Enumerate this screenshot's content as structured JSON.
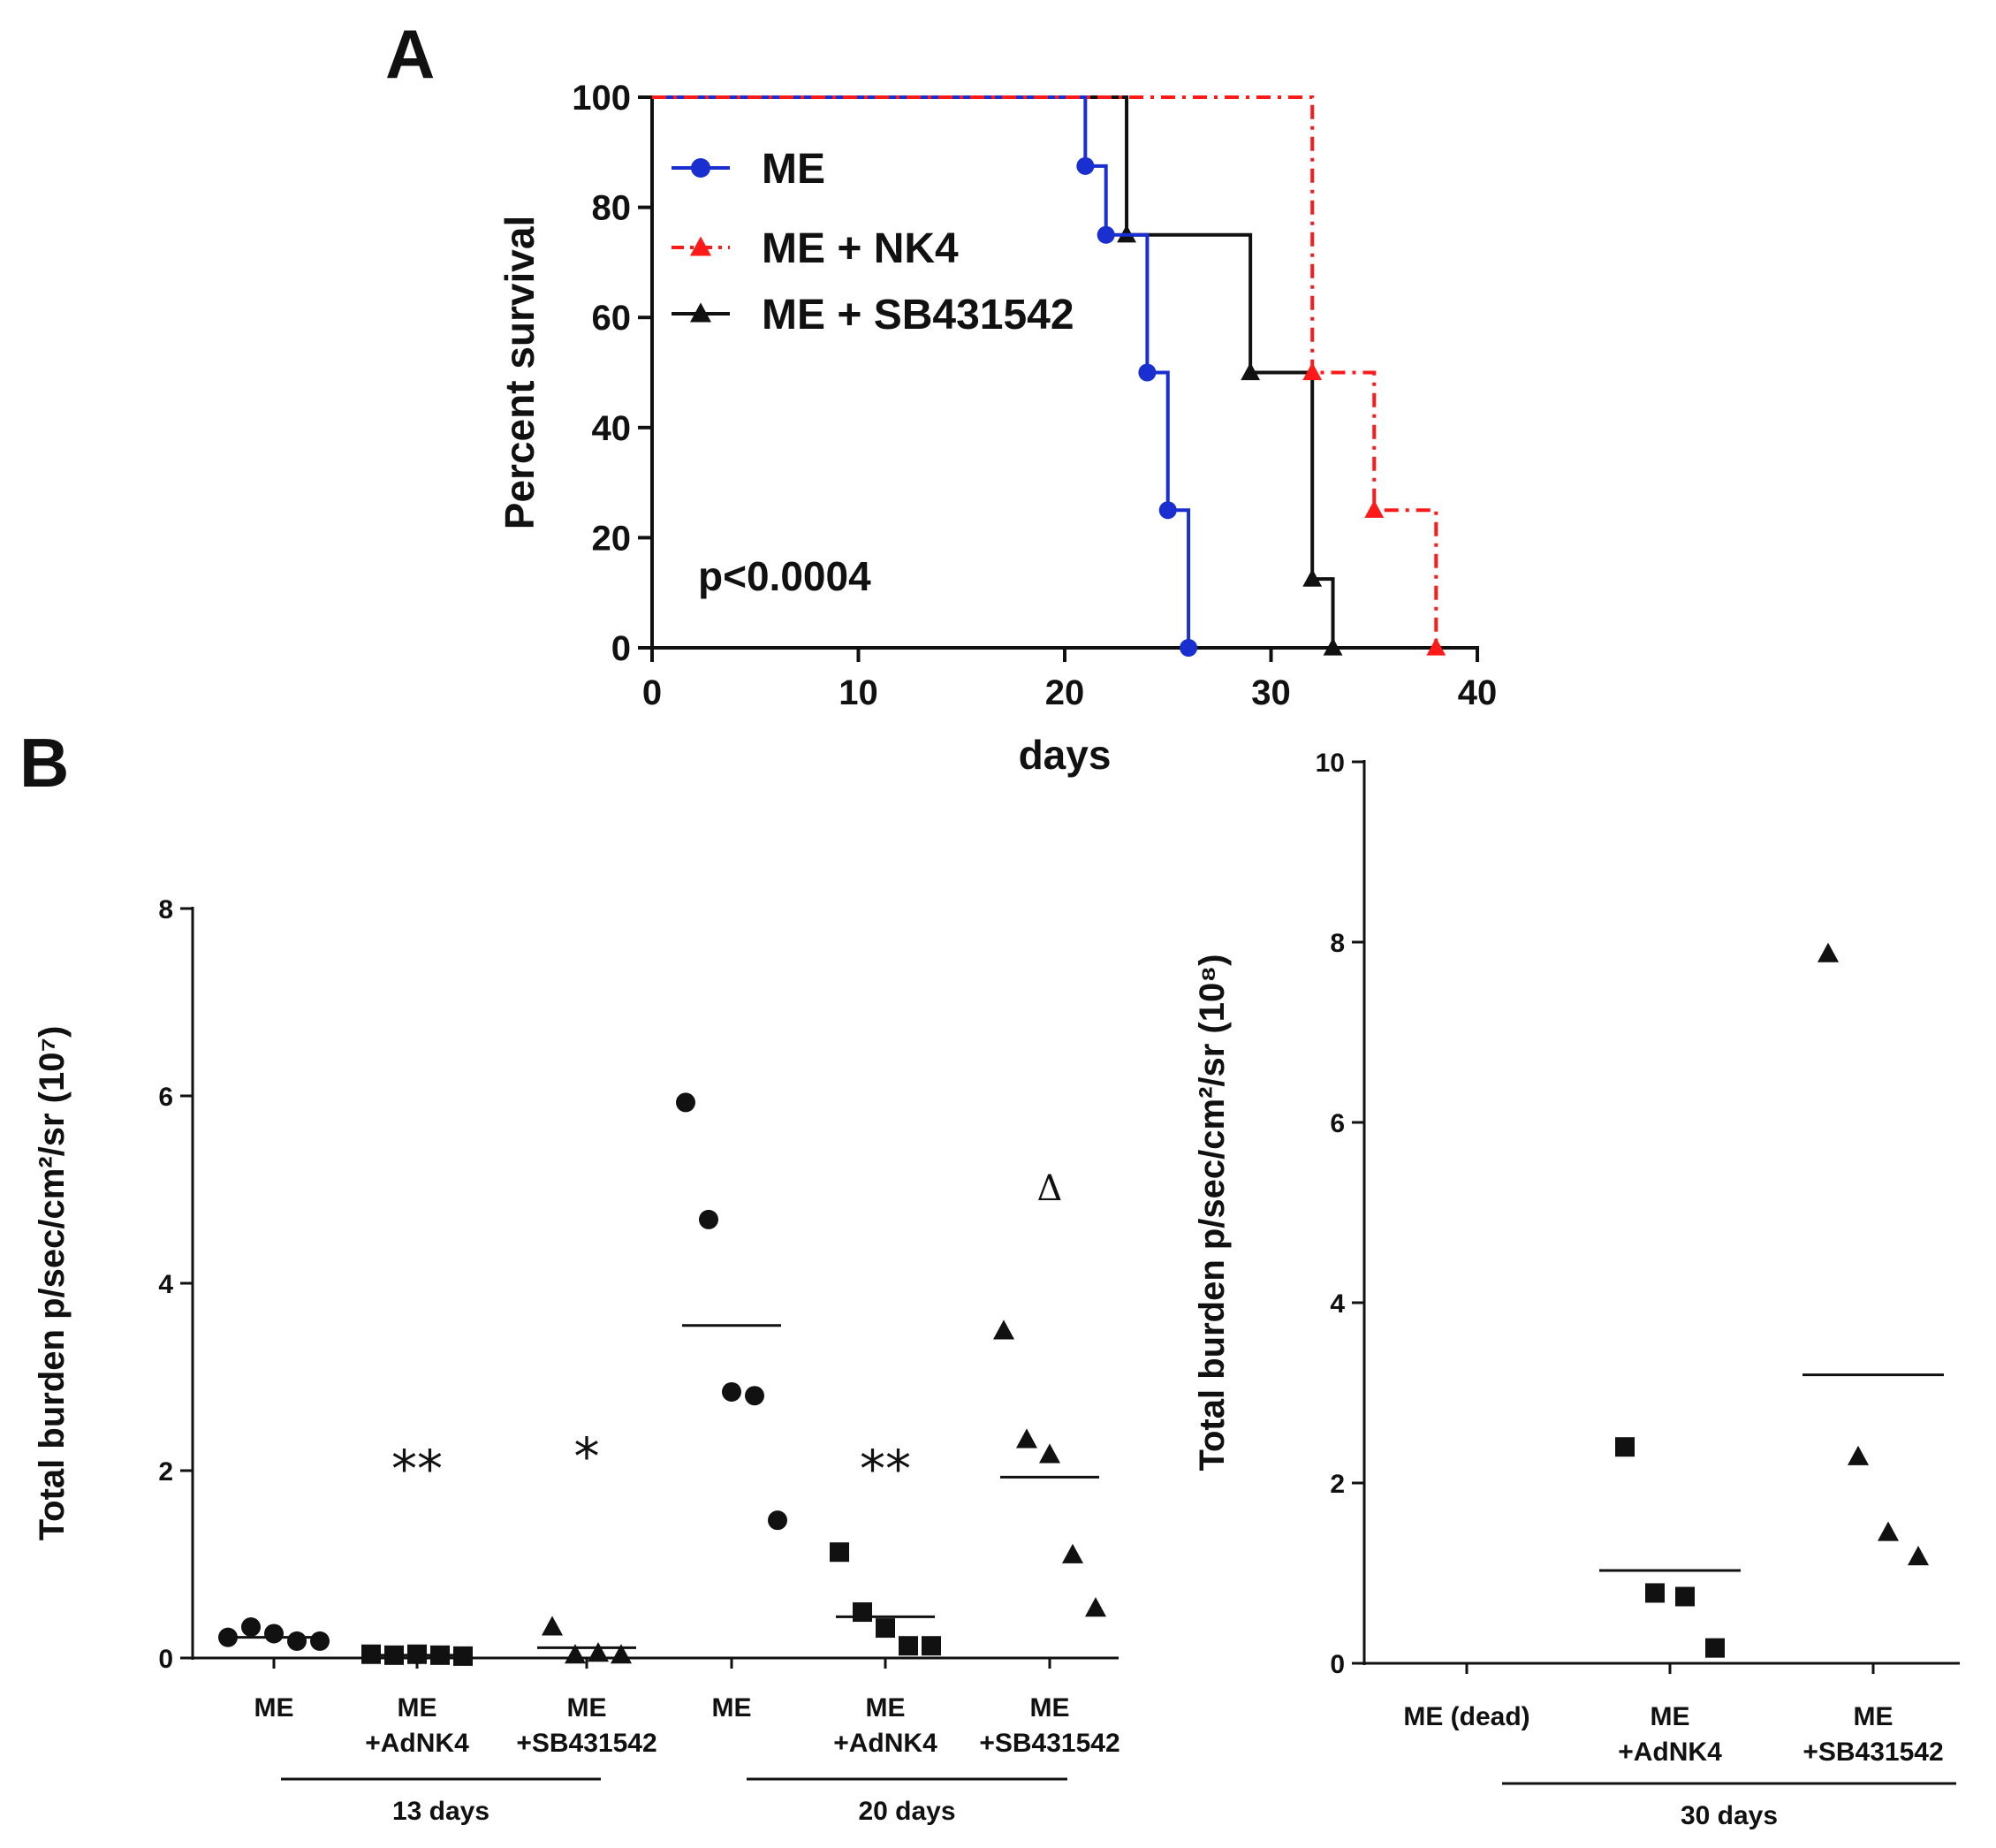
{
  "chart_data": [
    {
      "panel": "A",
      "type": "line",
      "subtype": "kaplan-meier step",
      "xlabel": "days",
      "ylabel": "Percent survival",
      "xlim": [
        0,
        40
      ],
      "ylim": [
        0,
        100
      ],
      "xticks": [
        0,
        10,
        20,
        30,
        40
      ],
      "yticks": [
        0,
        20,
        40,
        60,
        80,
        100
      ],
      "annotation": "p<0.0004",
      "legend_position": "top-left",
      "series": [
        {
          "name": "ME",
          "color": "#1a2fd0",
          "marker": "circle",
          "line": "solid",
          "steps": [
            [
              0,
              100
            ],
            [
              21,
              100
            ],
            [
              21,
              87.5
            ],
            [
              22,
              87.5
            ],
            [
              22,
              75
            ],
            [
              24,
              75
            ],
            [
              24,
              50
            ],
            [
              25,
              50
            ],
            [
              25,
              25
            ],
            [
              26,
              25
            ],
            [
              26,
              0
            ]
          ],
          "points": [
            [
              21,
              87.5
            ],
            [
              22,
              75
            ],
            [
              24,
              50
            ],
            [
              25,
              25
            ],
            [
              26,
              0
            ]
          ]
        },
        {
          "name": "ME + NK4",
          "color": "#ff1a1a",
          "marker": "triangle",
          "line": "dashdot",
          "steps": [
            [
              0,
              100
            ],
            [
              32,
              100
            ],
            [
              32,
              50
            ],
            [
              35,
              50
            ],
            [
              35,
              25
            ],
            [
              38,
              25
            ],
            [
              38,
              0
            ]
          ],
          "points": [
            [
              32,
              50
            ],
            [
              35,
              25
            ],
            [
              38,
              0
            ]
          ]
        },
        {
          "name": "ME + SB431542",
          "color": "#111111",
          "marker": "triangle",
          "line": "solid",
          "steps": [
            [
              0,
              100
            ],
            [
              23,
              100
            ],
            [
              23,
              75
            ],
            [
              29,
              75
            ],
            [
              29,
              50
            ],
            [
              32,
              50
            ],
            [
              32,
              12.5
            ],
            [
              33,
              12.5
            ],
            [
              33,
              0
            ]
          ],
          "points": [
            [
              23,
              75
            ],
            [
              29,
              50
            ],
            [
              32,
              12.5
            ],
            [
              33,
              0
            ]
          ]
        }
      ]
    },
    {
      "panel": "B-left",
      "type": "scatter",
      "ylabel": "Total burden p/sec/cm²/sr (10⁷)",
      "ylim": [
        0,
        8
      ],
      "yticks": [
        0,
        2,
        4,
        6,
        8
      ],
      "groups": [
        {
          "line1": "ME",
          "line2": "",
          "marker": "circle",
          "values": [
            0.22,
            0.33,
            0.26,
            0.18,
            0.18
          ],
          "mean": 0.22,
          "mark": ""
        },
        {
          "line1": "ME",
          "line2": "+AdNK4",
          "marker": "square",
          "values": [
            0.04,
            0.03,
            0.04,
            0.03,
            0.02
          ],
          "mean": 0.03,
          "mark": "**"
        },
        {
          "line1": "ME",
          "line2": "+SB431542",
          "marker": "triangle",
          "values": [
            0.33,
            0.03,
            0.05,
            0.03
          ],
          "mean": 0.11,
          "mark": "*"
        },
        {
          "line1": "ME",
          "line2": "",
          "marker": "circle",
          "values": [
            5.93,
            4.68,
            2.84,
            2.8,
            1.47
          ],
          "mean": 3.55,
          "mark": ""
        },
        {
          "line1": "ME",
          "line2": "+AdNK4",
          "marker": "square",
          "values": [
            1.13,
            0.49,
            0.32,
            0.13,
            0.13
          ],
          "mean": 0.44,
          "mark": "**"
        },
        {
          "line1": "ME",
          "line2": "+SB431542",
          "marker": "triangle",
          "values": [
            3.49,
            2.33,
            2.17,
            1.1,
            0.53
          ],
          "mean": 1.93,
          "mark": "Δ"
        }
      ],
      "brackets": [
        {
          "label": "13 days",
          "groups": [
            0,
            2
          ]
        },
        {
          "label": "20 days",
          "groups": [
            3,
            5
          ]
        }
      ]
    },
    {
      "panel": "B-right",
      "type": "scatter",
      "ylabel": "Total burden p/sec/cm²/sr (10⁸)",
      "ylim": [
        0,
        10
      ],
      "yticks": [
        0,
        2,
        4,
        6,
        8,
        10
      ],
      "groups": [
        {
          "line1": "ME (dead)",
          "line2": "",
          "marker": "none",
          "values": [],
          "mean": null
        },
        {
          "line1": "ME",
          "line2": "+AdNK4",
          "marker": "square",
          "values": [
            2.4,
            0.78,
            0.74,
            0.17
          ],
          "mean": 1.03
        },
        {
          "line1": "ME",
          "line2": "+SB431542",
          "marker": "triangle",
          "values": [
            7.87,
            2.29,
            1.45,
            1.18
          ],
          "mean": 3.2
        }
      ],
      "brackets": [
        {
          "label": "30 days",
          "groups": [
            0,
            2
          ]
        }
      ]
    }
  ],
  "labels": {
    "panel_a": "A",
    "panel_b": "B"
  }
}
